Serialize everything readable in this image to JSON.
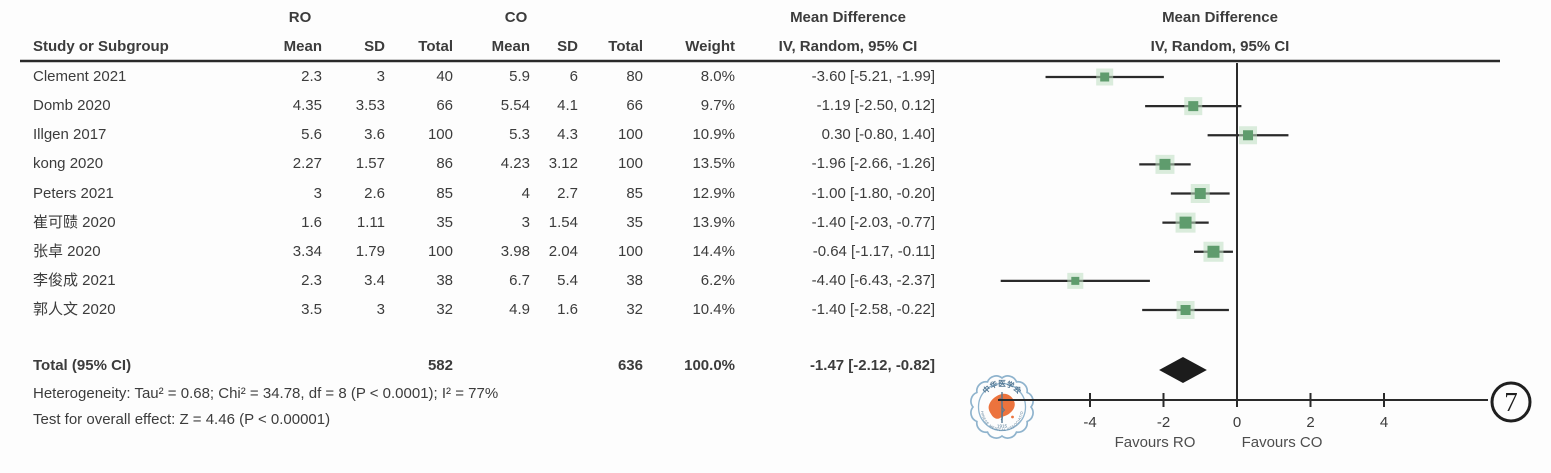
{
  "groups": {
    "ro": "RO",
    "co": "CO"
  },
  "columns": {
    "study": "Study or Subgroup",
    "mean": "Mean",
    "sd": "SD",
    "total": "Total",
    "weight": "Weight",
    "md": "Mean Difference",
    "method": "IV, Random, 95% CI"
  },
  "rows": [
    {
      "study": "Clement 2021",
      "ro_mean": "2.3",
      "ro_sd": "3",
      "ro_total": "40",
      "co_mean": "5.9",
      "co_sd": "6",
      "co_total": "80",
      "weight": "8.0%",
      "md_label": "-3.60 [-5.21, -1.99]"
    },
    {
      "study": "Domb 2020",
      "ro_mean": "4.35",
      "ro_sd": "3.53",
      "ro_total": "66",
      "co_mean": "5.54",
      "co_sd": "4.1",
      "co_total": "66",
      "weight": "9.7%",
      "md_label": "-1.19 [-2.50, 0.12]"
    },
    {
      "study": "Illgen 2017",
      "ro_mean": "5.6",
      "ro_sd": "3.6",
      "ro_total": "100",
      "co_mean": "5.3",
      "co_sd": "4.3",
      "co_total": "100",
      "weight": "10.9%",
      "md_label": "0.30 [-0.80, 1.40]"
    },
    {
      "study": "kong 2020",
      "ro_mean": "2.27",
      "ro_sd": "1.57",
      "ro_total": "86",
      "co_mean": "4.23",
      "co_sd": "3.12",
      "co_total": "100",
      "weight": "13.5%",
      "md_label": "-1.96 [-2.66, -1.26]"
    },
    {
      "study": "Peters 2021",
      "ro_mean": "3",
      "ro_sd": "2.6",
      "ro_total": "85",
      "co_mean": "4",
      "co_sd": "2.7",
      "co_total": "85",
      "weight": "12.9%",
      "md_label": "-1.00 [-1.80, -0.20]"
    },
    {
      "study": "崔可赜 2020",
      "ro_mean": "1.6",
      "ro_sd": "1.11",
      "ro_total": "35",
      "co_mean": "3",
      "co_sd": "1.54",
      "co_total": "35",
      "weight": "13.9%",
      "md_label": "-1.40 [-2.03, -0.77]"
    },
    {
      "study": "张卓 2020",
      "ro_mean": "3.34",
      "ro_sd": "1.79",
      "ro_total": "100",
      "co_mean": "3.98",
      "co_sd": "2.04",
      "co_total": "100",
      "weight": "14.4%",
      "md_label": "-0.64 [-1.17, -0.11]"
    },
    {
      "study": "李俊成 2021",
      "ro_mean": "2.3",
      "ro_sd": "3.4",
      "ro_total": "38",
      "co_mean": "6.7",
      "co_sd": "5.4",
      "co_total": "38",
      "weight": "6.2%",
      "md_label": "-4.40 [-6.43, -2.37]"
    },
    {
      "study": "郭人文 2020",
      "ro_mean": "3.5",
      "ro_sd": "3",
      "ro_total": "32",
      "co_mean": "4.9",
      "co_sd": "1.6",
      "co_total": "32",
      "weight": "10.4%",
      "md_label": "-1.40 [-2.58, -0.22]"
    }
  ],
  "total": {
    "label": "Total (95% CI)",
    "ro_total": "582",
    "co_total": "636",
    "weight": "100.0%",
    "md_label": "-1.47 [-2.12, -0.82]"
  },
  "footnotes": {
    "heterogeneity": "Heterogeneity: Tau² = 0.68; Chi² = 34.78, df = 8 (P < 0.0001); I² = 77%",
    "overall": "Test for overall effect: Z = 4.46 (P < 0.00001)"
  },
  "axis": {
    "ticks": [
      "-4",
      "-2",
      "0",
      "2",
      "4"
    ],
    "favours_left": "Favours RO",
    "favours_right": "Favours CO"
  },
  "figure_number": "7",
  "watermark": {
    "top_text": "中华医学会",
    "bottom_text": "CHINESE MEDICAL ASSOCIATION",
    "year": "1915"
  },
  "colors": {
    "text": "#3c3c3c",
    "line": "#2a2a2a",
    "square": "#5f9c6d",
    "square_halo": "#bedfc1",
    "diamond": "#1c1c1c",
    "seal_blue": "#8ab0cb",
    "seal_dark_blue": "#49708e",
    "seal_orange": "#ec6c33",
    "figure_circle": "#1f1f1f"
  },
  "chart_data": {
    "type": "scatter",
    "subtype": "forest-plot",
    "title": "Mean Difference",
    "method": "IV, Random, 95% CI",
    "xlabel_left": "Favours RO",
    "xlabel_right": "Favours CO",
    "x_ticks": [
      -4,
      -2,
      0,
      2,
      4
    ],
    "xlim": [
      -6.6,
      6.6
    ],
    "zero_line": 0,
    "studies": [
      "Clement 2021",
      "Domb 2020",
      "Illgen 2017",
      "kong 2020",
      "Peters 2021",
      "崔可赜 2020",
      "张卓 2020",
      "李俊成 2021",
      "郭人文 2020"
    ],
    "effects": [
      -3.6,
      -1.19,
      0.3,
      -1.96,
      -1.0,
      -1.4,
      -0.64,
      -4.4,
      -1.4
    ],
    "ci_low": [
      -5.21,
      -2.5,
      -0.8,
      -2.66,
      -1.8,
      -2.03,
      -1.17,
      -6.43,
      -2.58
    ],
    "ci_high": [
      -1.99,
      0.12,
      1.4,
      -1.26,
      -0.2,
      -0.77,
      -0.11,
      -2.37,
      -0.22
    ],
    "weights_pct": [
      8.0,
      9.7,
      10.9,
      13.5,
      12.9,
      13.9,
      14.4,
      6.2,
      10.4
    ],
    "ro_n": [
      40,
      66,
      100,
      86,
      85,
      35,
      100,
      38,
      32
    ],
    "co_n": [
      80,
      66,
      100,
      100,
      85,
      35,
      100,
      38,
      32
    ],
    "ro_mean": [
      2.3,
      4.35,
      5.6,
      2.27,
      3,
      1.6,
      3.34,
      2.3,
      3.5
    ],
    "ro_sd": [
      3,
      3.53,
      3.6,
      1.57,
      2.6,
      1.11,
      1.79,
      3.4,
      3
    ],
    "co_mean": [
      5.9,
      5.54,
      5.3,
      4.23,
      4,
      3,
      3.98,
      6.7,
      4.9
    ],
    "co_sd": [
      6,
      4.1,
      4.3,
      3.12,
      2.7,
      1.54,
      2.04,
      5.4,
      1.6
    ],
    "total": {
      "effect": -1.47,
      "ci_low": -2.12,
      "ci_high": -0.82,
      "weight_pct": 100.0,
      "ro_n": 582,
      "co_n": 636
    },
    "heterogeneity": {
      "tau2": 0.68,
      "chi2": 34.78,
      "df": 8,
      "p": "< 0.0001",
      "i2_pct": 77
    },
    "overall_effect": {
      "z": 4.46,
      "p": "< 0.00001"
    }
  }
}
